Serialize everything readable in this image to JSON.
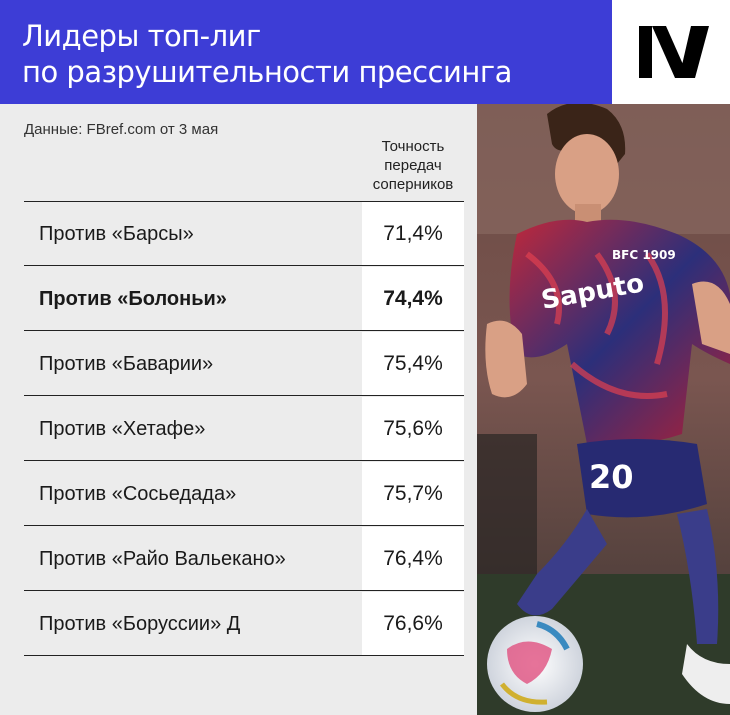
{
  "header": {
    "title_line1": "Лидеры топ-лиг",
    "title_line2": "по разрушительности прессинга"
  },
  "source": "Данные: FBref.com от 3 мая",
  "column_header": [
    "Точность",
    "передач",
    "соперников"
  ],
  "rows": [
    {
      "label": "Против «Барсы»",
      "value": "71,4%"
    },
    {
      "label": "Против «Болоньи»",
      "value": "74,4%"
    },
    {
      "label": "Против «Баварии»",
      "value": "75,4%"
    },
    {
      "label": "Против «Хетафе»",
      "value": "75,6%"
    },
    {
      "label": "Против «Сосьедада»",
      "value": "75,7%"
    },
    {
      "label": "Против «Райо Вальекано»",
      "value": "76,4%"
    },
    {
      "label": "Против «Боруссии» Д",
      "value": "76,6%"
    }
  ],
  "photo": {
    "jersey_text": "Saputo",
    "badge_text": "BFC 1909",
    "number": "20"
  },
  "colors": {
    "header_bg": "#3d3dd6",
    "page_bg": "#ececec",
    "value_cell_bg": "#ffffff"
  },
  "chart_data": {
    "type": "table",
    "columns": [
      "",
      "Точность передач соперников"
    ],
    "categories": [
      "Против «Барсы»",
      "Против «Болоньи»",
      "Против «Баварии»",
      "Против «Хетафе»",
      "Против «Сосьедада»",
      "Против «Райо Вальекано»",
      "Против «Боруссии» Д"
    ],
    "values": [
      71.4,
      74.4,
      75.4,
      75.6,
      75.7,
      76.4,
      76.6
    ],
    "highlighted": "Против «Болоньи»"
  }
}
